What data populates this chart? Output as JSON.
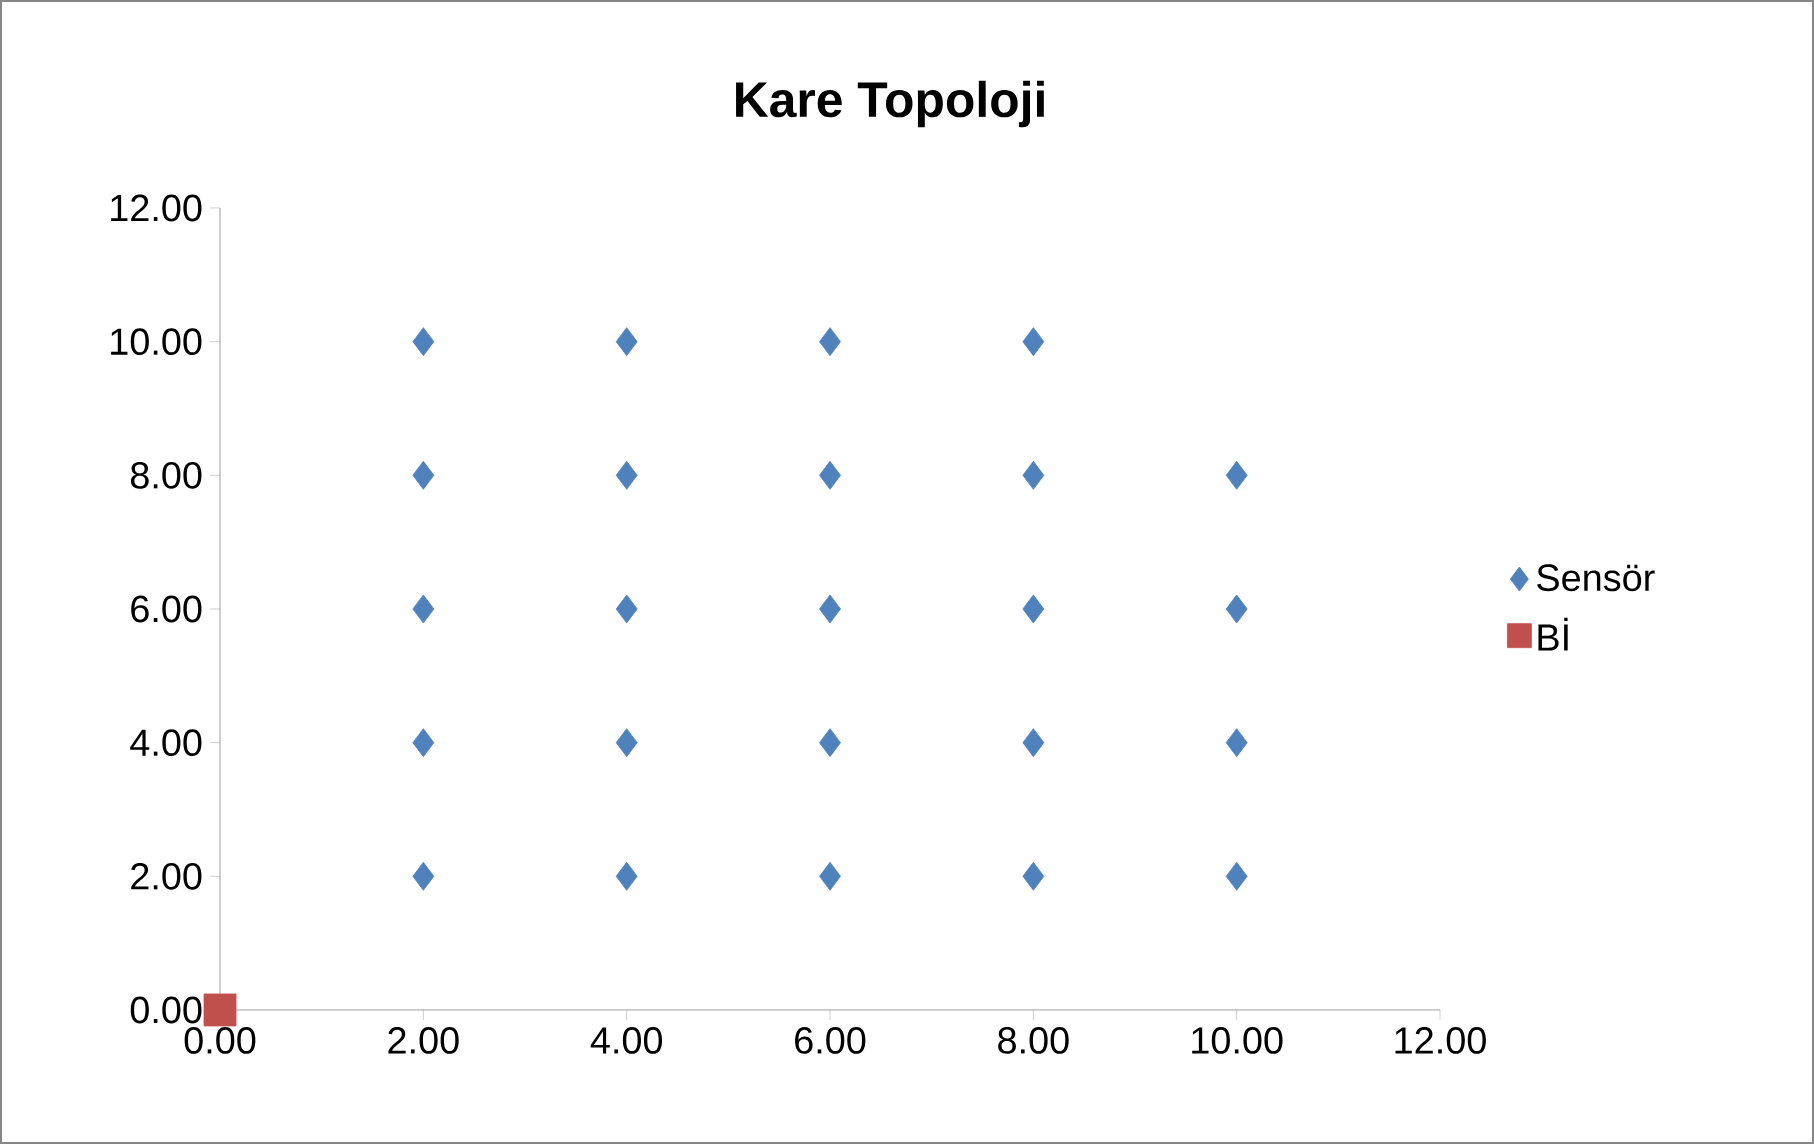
{
  "chart_data": {
    "type": "scatter",
    "title": "Kare Topoloji",
    "xlim": [
      0,
      12
    ],
    "ylim": [
      0,
      12
    ],
    "xticks": [
      {
        "value": 0,
        "label": "0.00"
      },
      {
        "value": 2,
        "label": "2.00"
      },
      {
        "value": 4,
        "label": "4.00"
      },
      {
        "value": 6,
        "label": "6.00"
      },
      {
        "value": 8,
        "label": "8.00"
      },
      {
        "value": 10,
        "label": "10.00"
      },
      {
        "value": 12,
        "label": "12.00"
      }
    ],
    "yticks": [
      {
        "value": 0,
        "label": "0.00"
      },
      {
        "value": 2,
        "label": "2.00"
      },
      {
        "value": 4,
        "label": "4.00"
      },
      {
        "value": 6,
        "label": "6.00"
      },
      {
        "value": 8,
        "label": "8.00"
      },
      {
        "value": 10,
        "label": "10.00"
      },
      {
        "value": 12,
        "label": "12.00"
      }
    ],
    "legend": "right",
    "series": [
      {
        "name": "Sensör",
        "color": "#4f81bd",
        "marker": "diamond",
        "x": [
          2,
          4,
          6,
          8,
          2,
          4,
          6,
          8,
          10,
          2,
          4,
          6,
          8,
          10,
          2,
          4,
          6,
          8,
          10,
          2,
          4,
          6,
          8,
          10
        ],
        "values": [
          10,
          10,
          10,
          10,
          8,
          8,
          8,
          8,
          8,
          6,
          6,
          6,
          6,
          6,
          4,
          4,
          4,
          4,
          4,
          2,
          2,
          2,
          2,
          2
        ]
      },
      {
        "name": "Bİ",
        "color": "#c0504d",
        "marker": "square",
        "x": [
          0
        ],
        "values": [
          0
        ]
      }
    ]
  }
}
